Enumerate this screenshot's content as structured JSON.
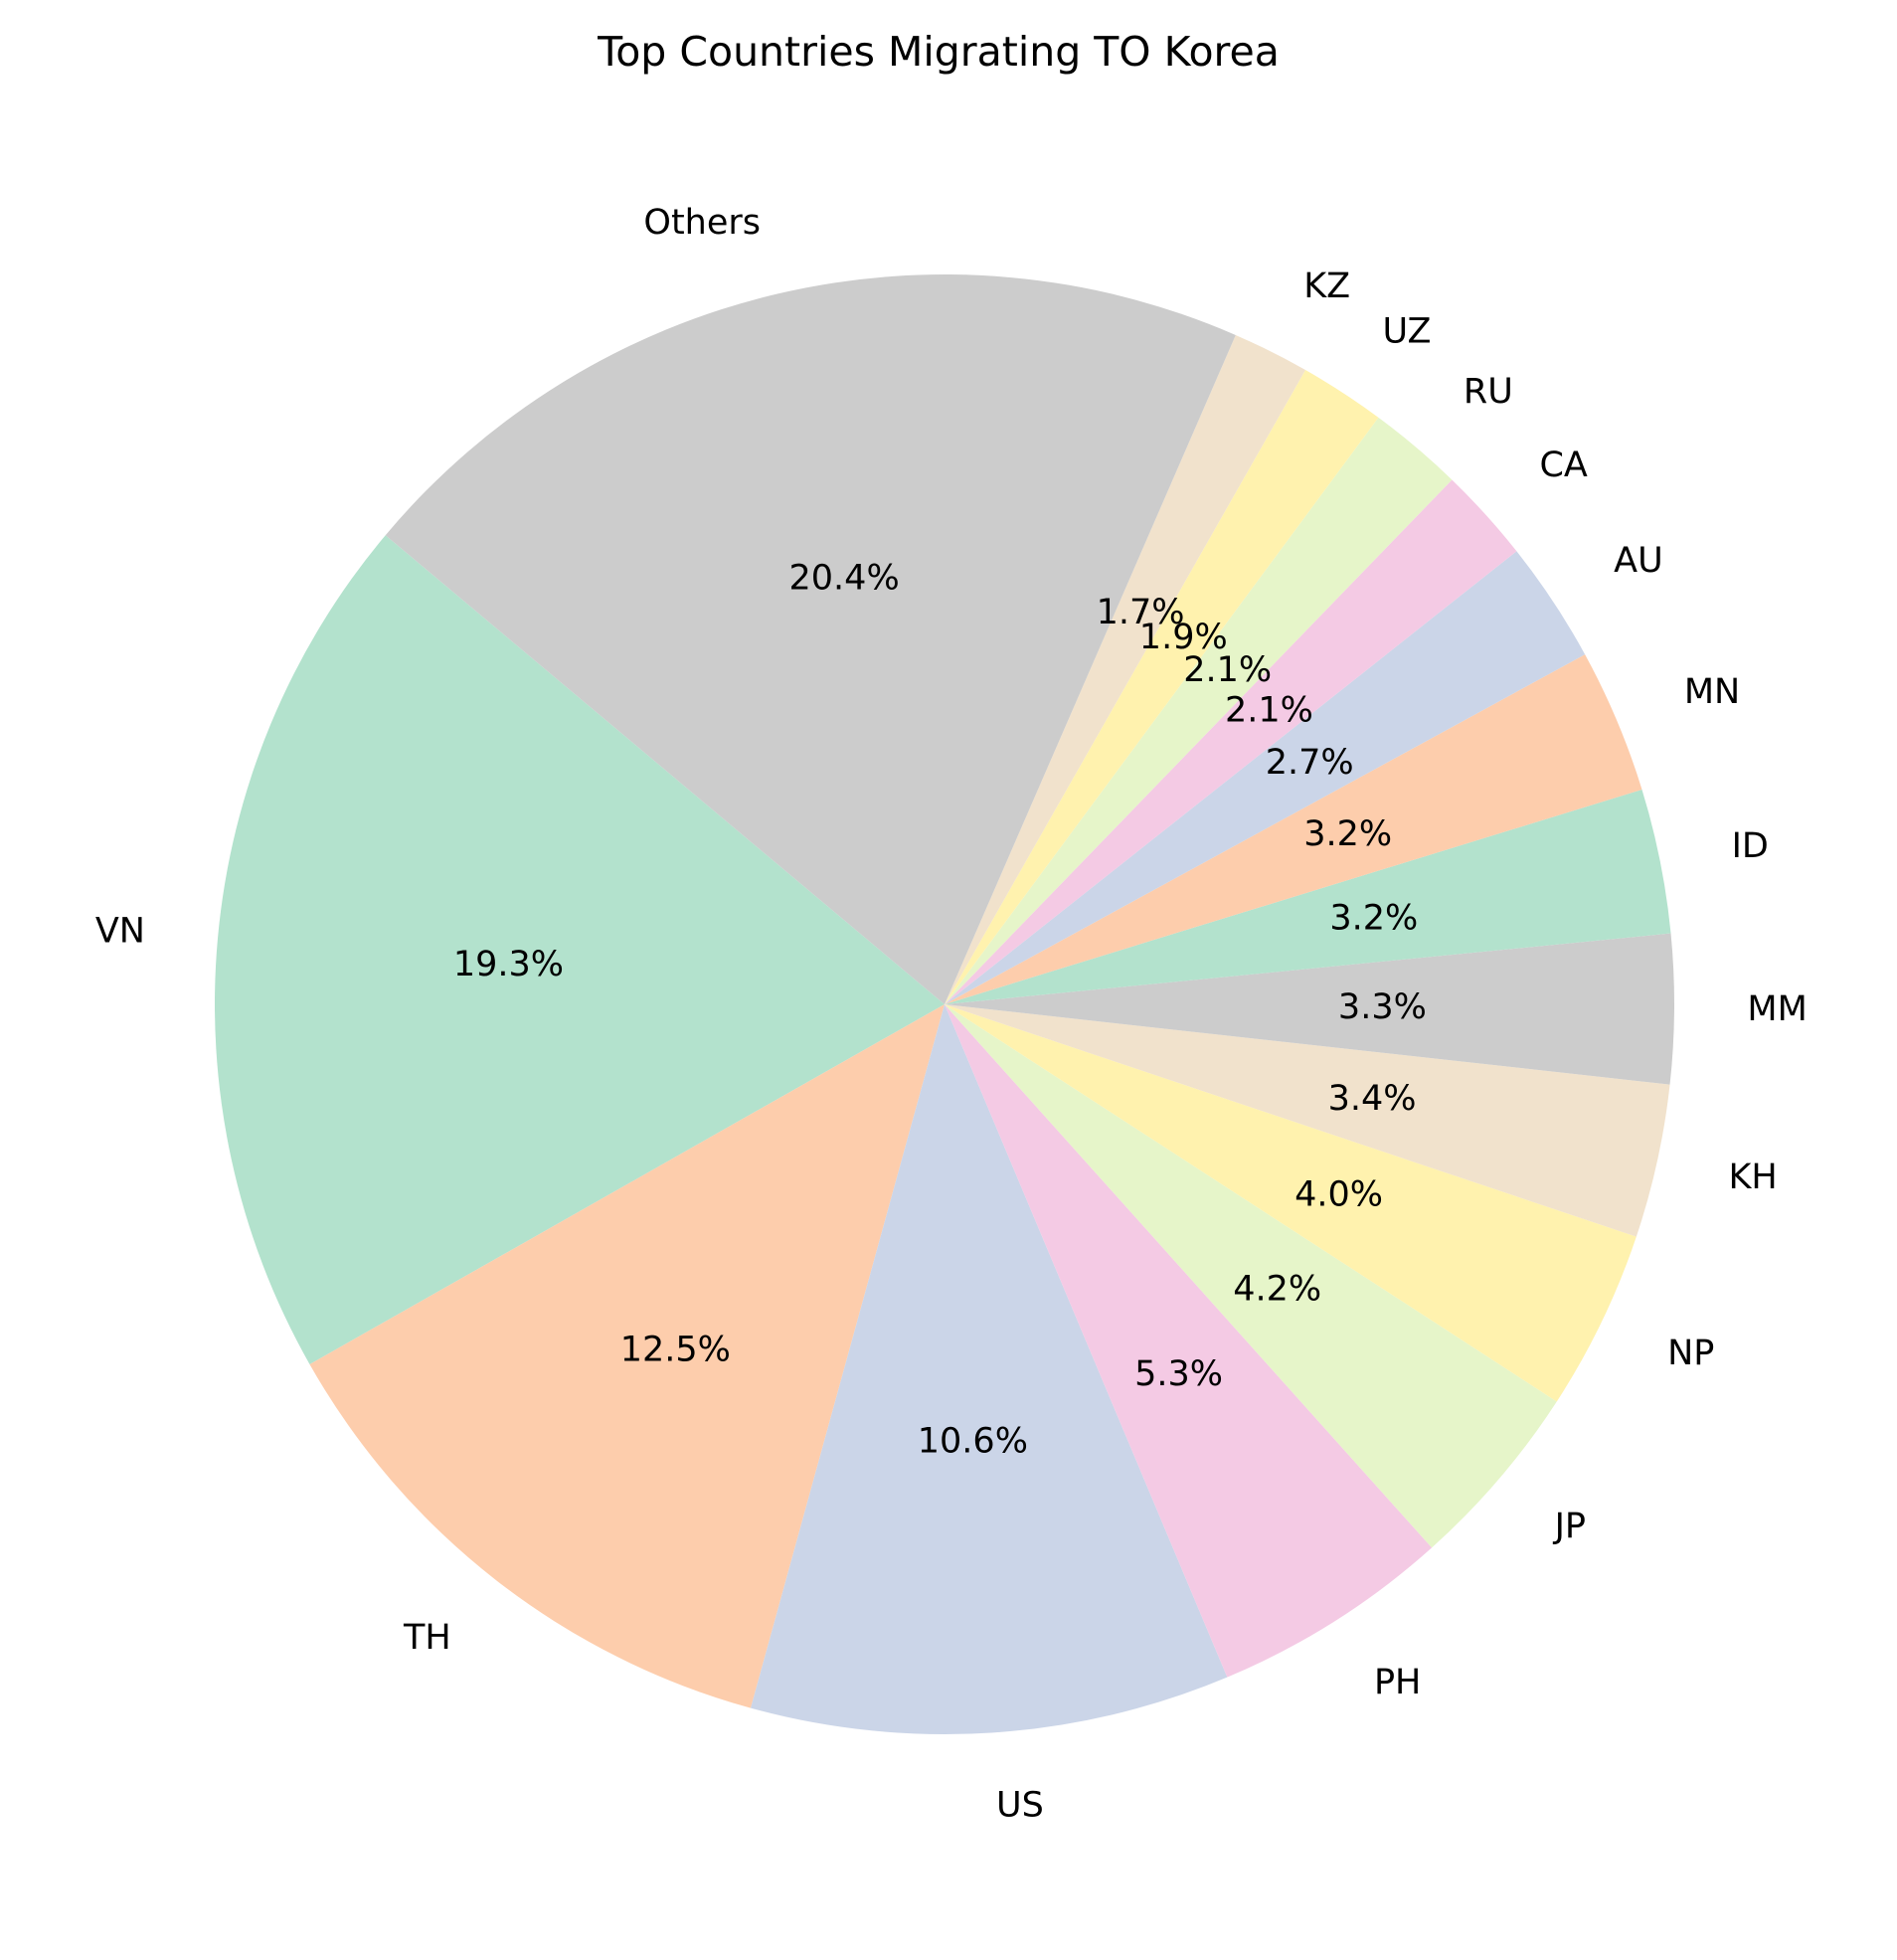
{
  "chart_data": {
    "type": "pie",
    "title": "Top Countries Migrating TO Korea",
    "start_angle_deg": 140,
    "direction": "counterclockwise",
    "slices": [
      {
        "label": "VN",
        "value": 19.3,
        "display": "19.3%",
        "color": "#b3e2cd"
      },
      {
        "label": "TH",
        "value": 12.5,
        "display": "12.5%",
        "color": "#fdcdac"
      },
      {
        "label": "US",
        "value": 10.6,
        "display": "10.6%",
        "color": "#cbd5e8"
      },
      {
        "label": "PH",
        "value": 5.3,
        "display": "5.3%",
        "color": "#f4cae4"
      },
      {
        "label": "JP",
        "value": 4.2,
        "display": "4.2%",
        "color": "#e6f5c9"
      },
      {
        "label": "NP",
        "value": 4.0,
        "display": "4.0%",
        "color": "#fff2ae"
      },
      {
        "label": "KH",
        "value": 3.4,
        "display": "3.4%",
        "color": "#f1e2cc"
      },
      {
        "label": "MM",
        "value": 3.3,
        "display": "3.3%",
        "color": "#cccccc"
      },
      {
        "label": "ID",
        "value": 3.2,
        "display": "3.2%",
        "color": "#b3e2cd"
      },
      {
        "label": "MN",
        "value": 3.2,
        "display": "3.2%",
        "color": "#fdcdac"
      },
      {
        "label": "AU",
        "value": 2.7,
        "display": "2.7%",
        "color": "#cbd5e8"
      },
      {
        "label": "CA",
        "value": 2.1,
        "display": "2.1%",
        "color": "#f4cae4"
      },
      {
        "label": "RU",
        "value": 2.1,
        "display": "2.1%",
        "color": "#e6f5c9"
      },
      {
        "label": "UZ",
        "value": 1.9,
        "display": "1.9%",
        "color": "#fff2ae"
      },
      {
        "label": "KZ",
        "value": 1.7,
        "display": "1.7%",
        "color": "#f1e2cc"
      },
      {
        "label": "Others",
        "value": 20.4,
        "display": "20.4%",
        "color": "#cccccc"
      }
    ]
  }
}
